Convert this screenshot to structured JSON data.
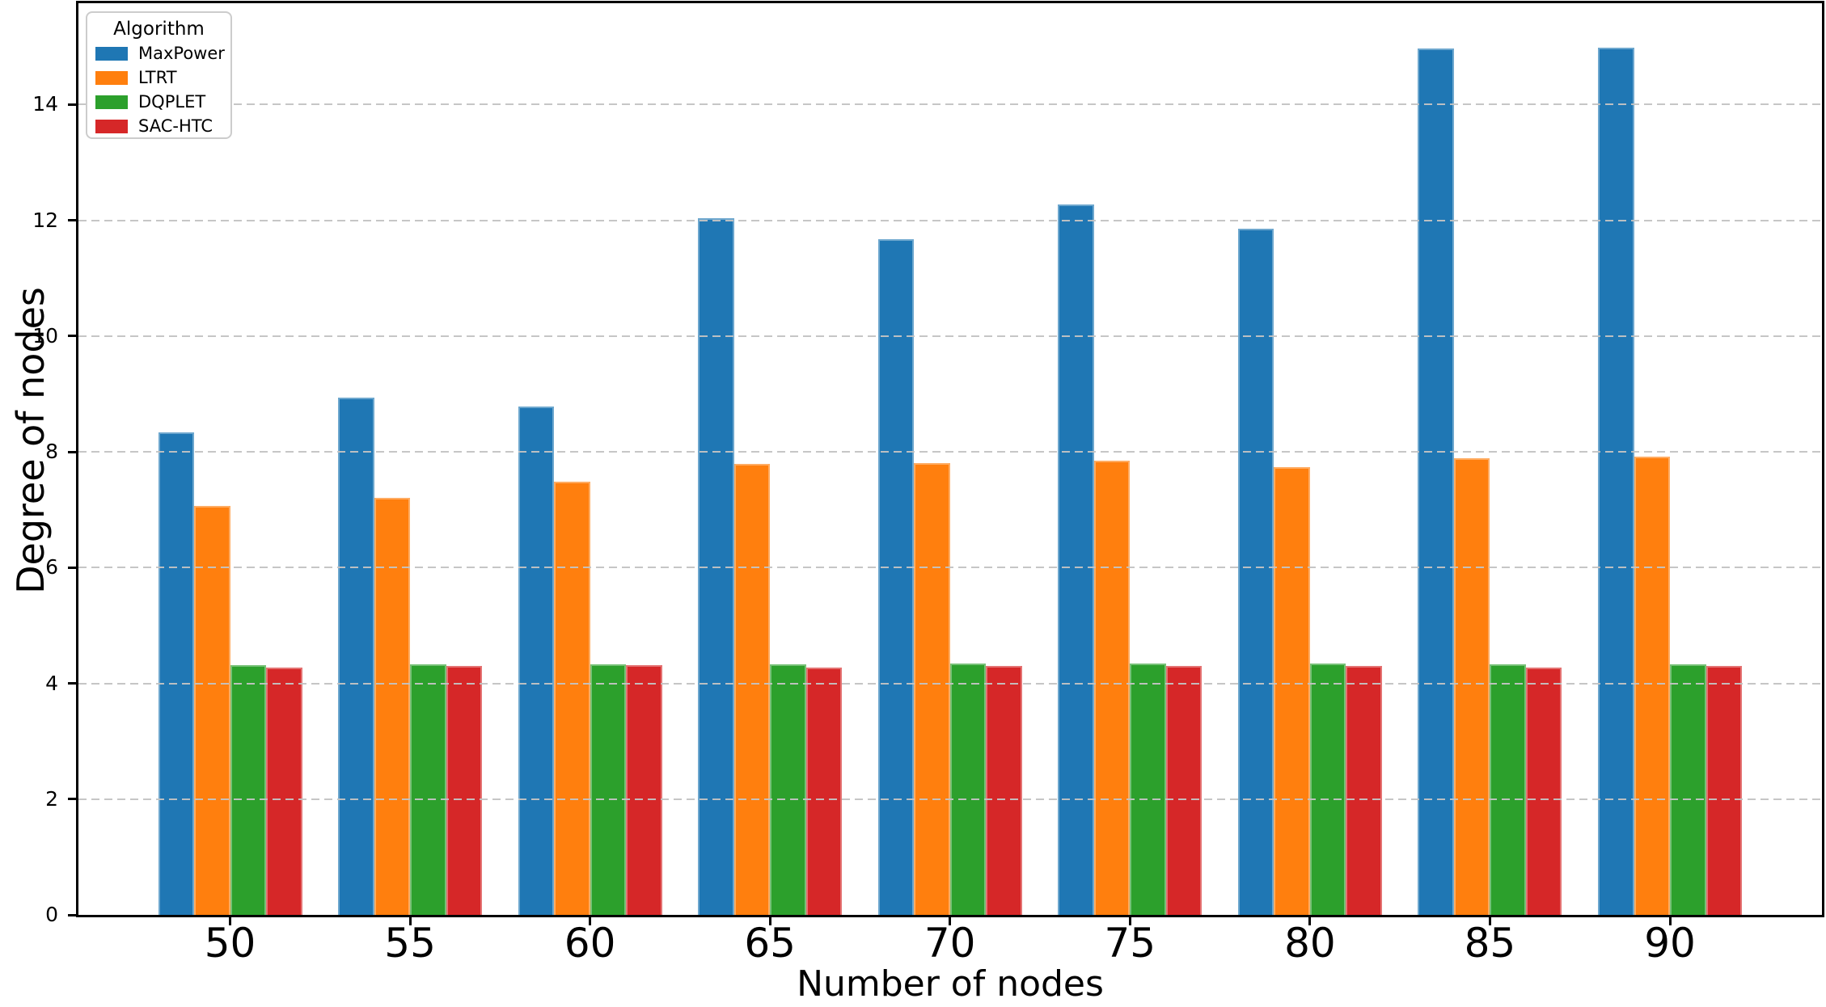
{
  "chart_data": {
    "type": "bar",
    "title": "",
    "xlabel": "Number of nodes",
    "ylabel": "Degree of nodes",
    "legend_title": "Algorithm",
    "legend_position": "upper left",
    "grid": "horizontal dashed gridlines drawn over bars",
    "background_color": "#ffffff",
    "categories": [
      "50",
      "55",
      "60",
      "65",
      "70",
      "75",
      "80",
      "85",
      "90"
    ],
    "yticks": [
      0,
      2,
      4,
      6,
      8,
      10,
      12,
      14
    ],
    "ylim": [
      0,
      15.75
    ],
    "series": [
      {
        "name": "MaxPower",
        "color": "#1f77b4",
        "values": [
          8.33,
          8.93,
          8.78,
          12.03,
          11.67,
          12.28,
          11.85,
          14.97,
          14.98
        ]
      },
      {
        "name": "LTRT",
        "color": "#ff7f0e",
        "values": [
          7.06,
          7.21,
          7.48,
          7.79,
          7.81,
          7.85,
          7.73,
          7.89,
          7.92
        ]
      },
      {
        "name": "DQPLET",
        "color": "#2ca02c",
        "values": [
          4.32,
          4.33,
          4.33,
          4.33,
          4.35,
          4.35,
          4.35,
          4.33,
          4.33
        ]
      },
      {
        "name": "SAC-HTC",
        "color": "#d62728",
        "values": [
          4.27,
          4.3,
          4.31,
          4.28,
          4.3,
          4.3,
          4.3,
          4.27,
          4.3
        ]
      }
    ]
  }
}
